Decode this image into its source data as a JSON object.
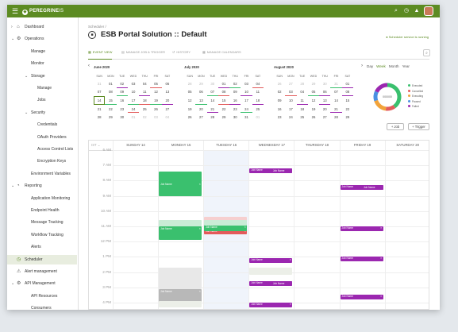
{
  "topbar": {
    "menu_icon": "hamburger-icon",
    "logo_text": "PEREGRINE",
    "logo_suffix": "IS",
    "icons": [
      "search-icon",
      "clock-icon",
      "bell-icon"
    ]
  },
  "sidebar": {
    "items": [
      {
        "label": "Dashboard",
        "level": 0,
        "chevron": "›",
        "icon": "⌂"
      },
      {
        "label": "Operations",
        "level": 0,
        "chevron": "⌄",
        "icon": "⚙"
      },
      {
        "label": "Manage",
        "level": 1
      },
      {
        "label": "Monitor",
        "level": 1
      },
      {
        "label": "Storage",
        "level": 1,
        "chevron": "⌄"
      },
      {
        "label": "Manage",
        "level": 2
      },
      {
        "label": "Jobs",
        "level": 2
      },
      {
        "label": "Security",
        "level": 1,
        "chevron": "⌄"
      },
      {
        "label": "Credentials",
        "level": 2
      },
      {
        "label": "OAuth Providers",
        "level": 2
      },
      {
        "label": "Access Control Lists",
        "level": 2
      },
      {
        "label": "Encryption Keys",
        "level": 2
      },
      {
        "label": "Environment Variables",
        "level": 1
      },
      {
        "label": "Reporting",
        "level": 0,
        "chevron": "⌄",
        "icon": "◔"
      },
      {
        "label": "Application Monitoring",
        "level": 1
      },
      {
        "label": "Endpoint Health",
        "level": 1
      },
      {
        "label": "Message Tracking",
        "level": 1
      },
      {
        "label": "Workflow Tracking",
        "level": 1
      },
      {
        "label": "Alerts",
        "level": 1
      },
      {
        "label": "Scheduler",
        "level": 0,
        "icon": "◷",
        "active": true
      },
      {
        "label": "Alert management",
        "level": 0,
        "icon": "⚠"
      },
      {
        "label": "API Management",
        "level": 0,
        "chevron": "⌄",
        "icon": "⚙"
      },
      {
        "label": "API Resources",
        "level": 1
      },
      {
        "label": "Consumers",
        "level": 1
      }
    ]
  },
  "header": {
    "breadcrumb": "Scheduler /",
    "title": "ESB Portal Solution :: Default",
    "service_status": "● Scheduler service is running"
  },
  "tabs": [
    {
      "label": "EVENT VIEW",
      "icon": "▦",
      "active": true
    },
    {
      "label": "MANAGE JOB & TRIGGER",
      "icon": "▤",
      "active": false
    },
    {
      "label": "HISTORY",
      "icon": "↺",
      "active": false
    },
    {
      "label": "MANAGE CALENDARS",
      "icon": "▦",
      "active": false
    }
  ],
  "calendars": {
    "prev_label": "‹",
    "next_label": "›",
    "dow": [
      "SUN",
      "MON",
      "TUE",
      "WED",
      "THU",
      "FRI",
      "SAT"
    ],
    "months": [
      {
        "title": "June 2020",
        "weeks": [
          [
            "31",
            "01",
            "02",
            "03",
            "04",
            "05",
            "06"
          ],
          [
            "07",
            "08",
            "09",
            "10",
            "11",
            "12",
            "13"
          ],
          [
            "14",
            "15",
            "16",
            "17",
            "18",
            "19",
            "20"
          ],
          [
            "21",
            "22",
            "23",
            "24",
            "25",
            "26",
            "27"
          ],
          [
            "28",
            "29",
            "30",
            "01",
            "02",
            "03",
            "04"
          ]
        ]
      },
      {
        "title": "July 2020",
        "weeks": [
          [
            "28",
            "29",
            "30",
            "01",
            "02",
            "03",
            "04"
          ],
          [
            "05",
            "06",
            "07",
            "08",
            "09",
            "10",
            "11"
          ],
          [
            "12",
            "13",
            "14",
            "15",
            "16",
            "17",
            "18"
          ],
          [
            "19",
            "20",
            "21",
            "22",
            "23",
            "24",
            "25"
          ],
          [
            "26",
            "27",
            "28",
            "29",
            "30",
            "31",
            "01"
          ]
        ]
      },
      {
        "title": "August 2020",
        "weeks": [
          [
            "26",
            "27",
            "28",
            "29",
            "30",
            "31",
            "01"
          ],
          [
            "02",
            "03",
            "04",
            "05",
            "06",
            "07",
            "08"
          ],
          [
            "09",
            "10",
            "11",
            "12",
            "13",
            "14",
            "15"
          ],
          [
            "16",
            "17",
            "18",
            "19",
            "20",
            "21",
            "22"
          ],
          [
            "23",
            "24",
            "25",
            "26",
            "27",
            "28",
            "29"
          ]
        ]
      }
    ]
  },
  "view_modes": [
    {
      "label": "Day",
      "active": false
    },
    {
      "label": "Week",
      "active": true
    },
    {
      "label": "Month",
      "active": false
    },
    {
      "label": "Year",
      "active": false
    }
  ],
  "status_chart": {
    "center_label": "000000",
    "segments": [
      {
        "label": "Executed",
        "color": "#3ac06e",
        "share": 0.4
      },
      {
        "label": "Cancelled",
        "color": "#e35b5b",
        "share": 0.12
      },
      {
        "label": "Executing",
        "color": "#f2a33a",
        "share": 0.18
      },
      {
        "label": "Paused",
        "color": "#4a90e2",
        "share": 0.12
      },
      {
        "label": "Failed",
        "color": "#9b27b0",
        "share": 0.18
      }
    ]
  },
  "actions": {
    "add_job": "+ Job",
    "add_trigger": "+ Trigger"
  },
  "schedule": {
    "tz_label": "IST ⌄",
    "days": [
      "SUNDAY 14",
      "MONDAY 15",
      "TUESDAY 16",
      "WEDNESDAY 17",
      "THURSDAY 18",
      "FRIDAY 19",
      "SATURDAY 20"
    ],
    "hours": [
      "6 AM",
      "7 AM",
      "8 AM",
      "9 AM",
      "10 AM",
      "11 AM",
      "12 PM",
      "1 PM",
      "2 PM",
      "3 PM",
      "4 PM",
      "5 PM"
    ],
    "event_label": "Job Name"
  },
  "colors": {
    "brand_green": "#5c8b22",
    "event_green": "#3ac06e",
    "event_red": "#e35b5b",
    "event_purple": "#9b27b0",
    "event_gray": "#b8b8b8",
    "event_orange": "#f2a33a"
  }
}
